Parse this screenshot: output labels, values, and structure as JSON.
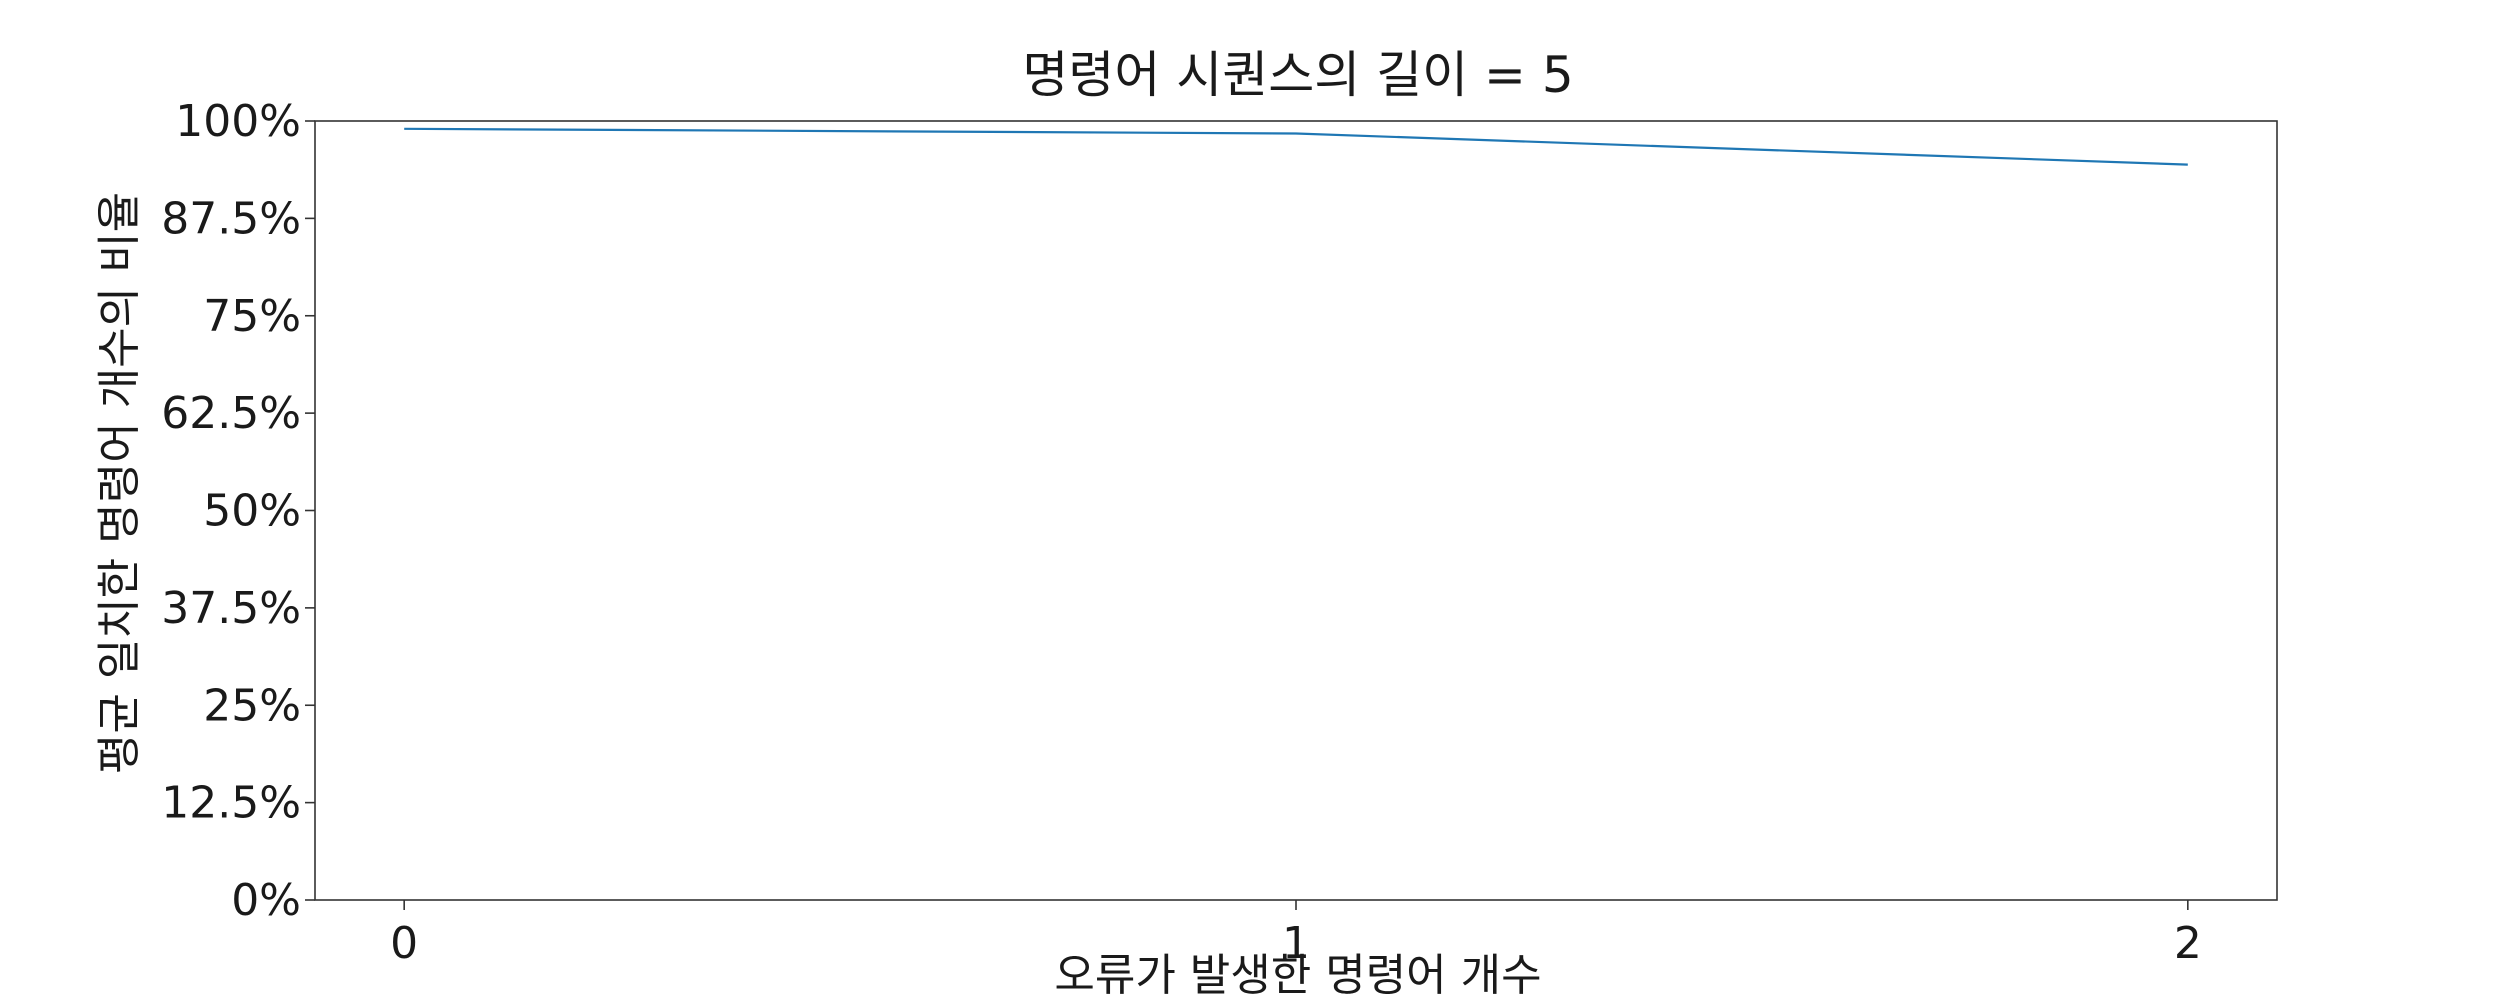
{
  "chart_data": {
    "type": "line",
    "title": "명령어 시퀀스의 길이 = 5",
    "xlabel": "오류가 발생한 명령어 개수",
    "ylabel": "평균 일치한 명령어 개수의 비율",
    "x": [
      0,
      1,
      2
    ],
    "x_tick_labels": [
      "0",
      "1",
      "2"
    ],
    "y_ticks": [
      0,
      12.5,
      25,
      37.5,
      50,
      62.5,
      75,
      87.5,
      100
    ],
    "y_tick_labels": [
      "0%",
      "12.5%",
      "25%",
      "37.5%",
      "50%",
      "62.5%",
      "75%",
      "87.5%",
      "100%"
    ],
    "xlim": [
      -0.1,
      2.1
    ],
    "ylim": [
      0,
      100
    ],
    "series": [
      {
        "values": [
          99.0,
          98.4,
          94.4
        ],
        "color": "#1f77b4"
      }
    ],
    "grid": false,
    "legend": "none"
  }
}
